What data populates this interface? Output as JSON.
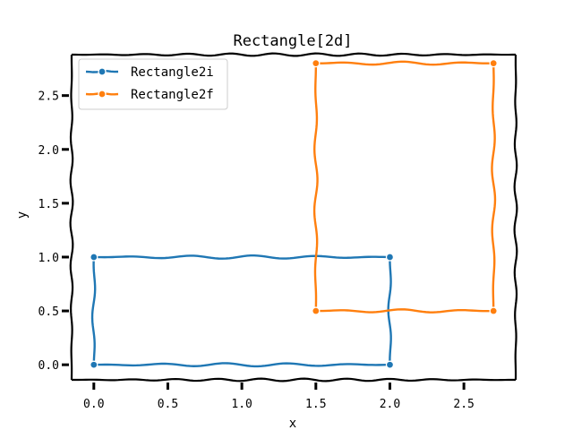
{
  "chart_data": {
    "type": "line",
    "title": "Rectangle[2d]",
    "xlabel": "x",
    "ylabel": "y",
    "xlim": [
      -0.15,
      2.85
    ],
    "ylim": [
      -0.14,
      2.88
    ],
    "xticks": [
      0.0,
      0.5,
      1.0,
      1.5,
      2.0,
      2.5
    ],
    "xtick_labels": [
      "0.0",
      "0.5",
      "1.0",
      "1.5",
      "2.0",
      "2.5"
    ],
    "yticks": [
      0.0,
      0.5,
      1.0,
      1.5,
      2.0,
      2.5
    ],
    "ytick_labels": [
      "0.0",
      "0.5",
      "1.0",
      "1.5",
      "2.0",
      "2.5"
    ],
    "grid": false,
    "legend_position": "top-left",
    "style": "xkcd",
    "series": [
      {
        "name": "Rectangle2i",
        "color": "#1f77b4",
        "points": [
          [
            0,
            0
          ],
          [
            0,
            1
          ],
          [
            2,
            1
          ],
          [
            2,
            0
          ],
          [
            0,
            0
          ]
        ]
      },
      {
        "name": "Rectangle2f",
        "color": "#ff7f0e",
        "points": [
          [
            1.5,
            0.5
          ],
          [
            1.5,
            2.8
          ],
          [
            2.7,
            2.8
          ],
          [
            2.7,
            0.5
          ],
          [
            1.5,
            0.5
          ]
        ]
      }
    ]
  }
}
